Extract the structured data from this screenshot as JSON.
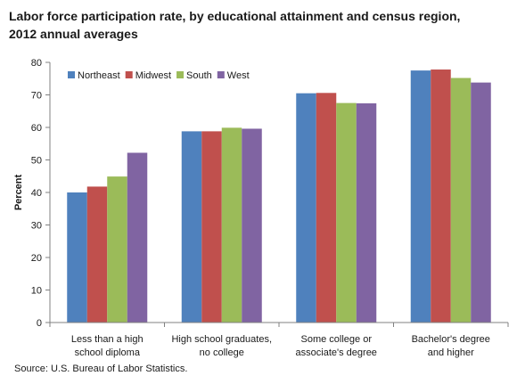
{
  "chart_data": {
    "type": "bar",
    "title_lines": [
      "Labor force participation rate, by educational attainment and census region,",
      "2012 annual averages"
    ],
    "ylabel": "Percent",
    "xlabel": "",
    "ylim": [
      0,
      80
    ],
    "yticks": [
      0,
      10,
      20,
      30,
      40,
      50,
      60,
      70,
      80
    ],
    "grid": false,
    "legend_position": "top-left",
    "categories": [
      [
        "Less than a high",
        "school diploma"
      ],
      [
        "High school graduates,",
        "no college"
      ],
      [
        "Some college or",
        "associate's degree"
      ],
      [
        "Bachelor's degree",
        "and higher"
      ]
    ],
    "series": [
      {
        "name": "Northeast",
        "color": "#4f81bd",
        "values": [
          40.0,
          58.8,
          70.5,
          77.5
        ]
      },
      {
        "name": "Midwest",
        "color": "#c0504d",
        "values": [
          41.8,
          58.8,
          70.6,
          77.8
        ]
      },
      {
        "name": "South",
        "color": "#9bbb59",
        "values": [
          44.9,
          59.9,
          67.5,
          75.2
        ]
      },
      {
        "name": "West",
        "color": "#8064a2",
        "values": [
          52.2,
          59.6,
          67.4,
          73.8
        ]
      }
    ],
    "source": "Source: U.S. Bureau of Labor Statistics."
  }
}
